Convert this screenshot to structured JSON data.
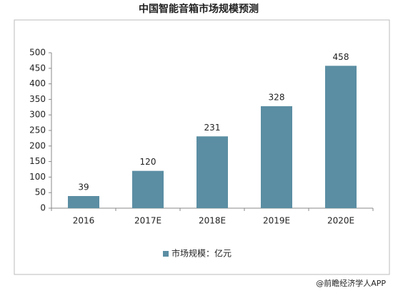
{
  "chart_data": {
    "type": "bar",
    "title": "中国智能音箱市场规模预测",
    "categories": [
      "2016",
      "2017E",
      "2018E",
      "2019E",
      "2020E"
    ],
    "series": [
      {
        "name": "市场规模：亿元",
        "color": "#5b8ea3",
        "values": [
          39,
          120,
          231,
          328,
          458
        ]
      }
    ],
    "ylim": [
      0,
      500
    ],
    "yticks": [
      0,
      50,
      100,
      150,
      200,
      250,
      300,
      350,
      400,
      450,
      500
    ],
    "grid": false,
    "legend": "bottom",
    "source": "@前瞻经济学人APP"
  }
}
